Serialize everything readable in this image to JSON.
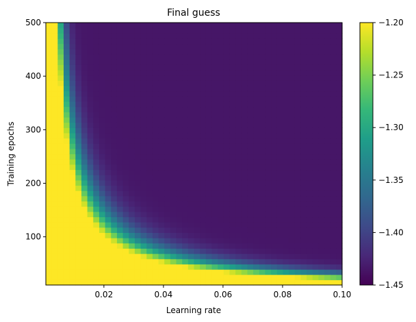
{
  "chart_data": {
    "type": "heatmap",
    "title": "Final guess",
    "xlabel": "Learning rate",
    "ylabel": "Training epochs",
    "xlim": [
      0.0005,
      0.1
    ],
    "ylim": [
      10,
      500
    ],
    "x_ticks": [
      0.02,
      0.04,
      0.06,
      0.08,
      0.1
    ],
    "x_tick_labels": [
      "0.02",
      "0.04",
      "0.06",
      "0.08",
      "0.10"
    ],
    "y_ticks": [
      100,
      200,
      300,
      400,
      500
    ],
    "y_tick_labels": [
      "100",
      "200",
      "300",
      "400",
      "500"
    ],
    "grid": false,
    "colormap": "viridis",
    "color_range": [
      -1.45,
      -1.2
    ],
    "colorbar_ticks": [
      -1.45,
      -1.4,
      -1.35,
      -1.3,
      -1.25,
      -1.2
    ],
    "colorbar_tick_labels": [
      "−1.45",
      "−1.40",
      "−1.35",
      "−1.30",
      "−1.25",
      "−1.20"
    ],
    "grid_shape": {
      "columns": 50,
      "rows": 50
    },
    "cell_width_lr": 0.00199,
    "cell_height_epochs": 9.8,
    "colors": {
      "viridis": [
        "#440154",
        "#482878",
        "#3e4a89",
        "#31688e",
        "#26828e",
        "#1f9e89",
        "#35b779",
        "#6ece58",
        "#b5de2b",
        "#fde725"
      ]
    }
  }
}
